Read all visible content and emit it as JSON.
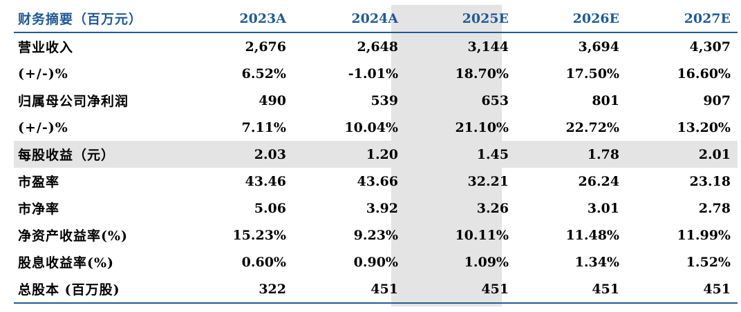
{
  "header": {
    "title": "财务摘要（百万元）",
    "years": [
      "2023A",
      "2024A",
      "2025E",
      "2026E",
      "2027E"
    ]
  },
  "rows": [
    {
      "label": "营业收入",
      "values": [
        "2,676",
        "2,648",
        "3,144",
        "3,694",
        "4,307"
      ]
    },
    {
      "label": "(+/-)%",
      "values": [
        "6.52%",
        "-1.01%",
        "18.70%",
        "17.50%",
        "16.60%"
      ]
    },
    {
      "label": "归属母公司净利润",
      "values": [
        "490",
        "539",
        "653",
        "801",
        "907"
      ]
    },
    {
      "label": "(+/-)%",
      "values": [
        "7.11%",
        "10.04%",
        "21.10%",
        "22.72%",
        "13.20%"
      ]
    },
    {
      "label": "每股收益（元）",
      "values": [
        "2.03",
        "1.20",
        "1.45",
        "1.78",
        "2.01"
      ]
    },
    {
      "label": "市盈率",
      "values": [
        "43.46",
        "43.66",
        "32.21",
        "26.24",
        "23.18"
      ]
    },
    {
      "label": "市净率",
      "values": [
        "5.06",
        "3.92",
        "3.26",
        "3.01",
        "2.78"
      ]
    },
    {
      "label": "净资产收益率(%)",
      "values": [
        "15.23%",
        "9.23%",
        "10.11%",
        "11.48%",
        "11.99%"
      ]
    },
    {
      "label": "股息收益率(%)",
      "values": [
        "0.60%",
        "0.90%",
        "1.09%",
        "1.34%",
        "1.52%"
      ]
    },
    {
      "label": "总股本 (百万股)",
      "values": [
        "322",
        "451",
        "451",
        "451",
        "451"
      ]
    }
  ],
  "colors": {
    "header_text": "#1f5a96",
    "shade": "#e4e4e4",
    "rule": "#1f5a96"
  }
}
